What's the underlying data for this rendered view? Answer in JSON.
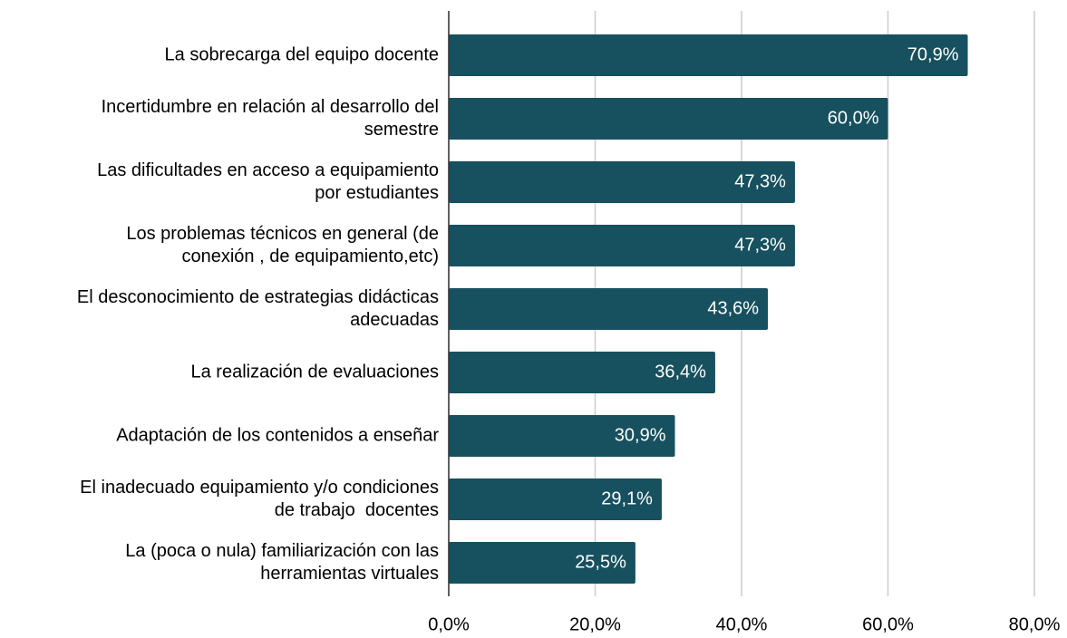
{
  "chart_data": {
    "type": "bar",
    "orientation": "horizontal",
    "categories": [
      [
        "La sobrecarga del equipo docente"
      ],
      [
        "Incertidumbre en relación al desarrollo del",
        "semestre"
      ],
      [
        "Las dificultades en acceso a equipamiento",
        "por estudiantes"
      ],
      [
        "Los problemas técnicos en general (de",
        "conexión , de equipamiento,etc)"
      ],
      [
        "El desconocimiento de estrategias didácticas",
        "adecuadas"
      ],
      [
        "La realización de evaluaciones"
      ],
      [
        "Adaptación de los contenidos a enseñar"
      ],
      [
        "El inadecuado equipamiento y/o condiciones",
        "de trabajo  docentes"
      ],
      [
        "La (poca o nula) familiarización con las",
        "herramientas virtuales"
      ]
    ],
    "values": [
      70.9,
      60.0,
      47.3,
      47.3,
      43.6,
      36.4,
      30.9,
      29.1,
      25.5
    ],
    "value_labels": [
      "70,9%",
      "60,0%",
      "47,3%",
      "47,3%",
      "43,6%",
      "36,4%",
      "30,9%",
      "29,1%",
      "25,5%"
    ],
    "color": "#17505e",
    "xlim": [
      0,
      80
    ],
    "xticks": [
      {
        "value": 0,
        "label": "0,0%"
      },
      {
        "value": 20,
        "label": "20,0%"
      },
      {
        "value": 40,
        "label": "40,0%"
      },
      {
        "value": 60,
        "label": "60,0%"
      },
      {
        "value": 80,
        "label": "80,0%"
      }
    ],
    "grid": true
  }
}
